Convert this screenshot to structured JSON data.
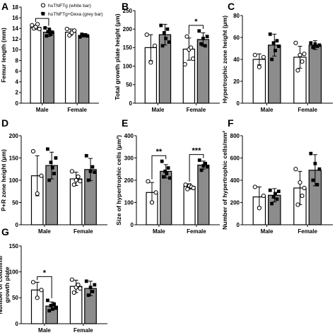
{
  "legend": [
    {
      "label": "huTNFTg (white bar)",
      "marker": "open-circle"
    },
    {
      "label": "huTNFTg+Dexa (grey bar)",
      "marker": "filled-square"
    }
  ],
  "colors": {
    "white_bar": "#ffffff",
    "grey_bar": "#8c8c8c",
    "outline": "#000000"
  },
  "chart_data": [
    {
      "type": "bar",
      "panel": "A",
      "title": "",
      "ylabel": "Femur length (mm)",
      "ylim": [
        0,
        18
      ],
      "yticks": [
        "0",
        "2",
        "4",
        "6",
        "8",
        "10",
        "12",
        "14",
        "16",
        "18"
      ],
      "categories": [
        "Male",
        "Female"
      ],
      "series": [
        {
          "name": "huTNFTg (white bar)",
          "values": [
            14.2,
            13.3
          ],
          "errors": [
            0.4,
            0.6
          ],
          "points": [
            [
              14.6,
              14.0,
              14.3,
              14.8,
              13.9
            ],
            [
              13.9,
              12.7,
              13.2,
              13.6
            ]
          ]
        },
        {
          "name": "huTNFTg+Dexa (grey bar)",
          "values": [
            13.3,
            12.7
          ],
          "errors": [
            0.8,
            0.3
          ],
          "points": [
            [
              14.1,
              12.6,
              13.4,
              13.7,
              12.9,
              13.3
            ],
            [
              12.4,
              12.9,
              12.7,
              12.8,
              12.6
            ]
          ]
        }
      ],
      "significance": [
        {
          "category": 0,
          "label": "*"
        }
      ]
    },
    {
      "type": "bar",
      "panel": "B",
      "title": "",
      "ylabel": "Total growth plate height (µm)",
      "ylim": [
        0,
        250
      ],
      "yticks": [
        "0",
        "50",
        "100",
        "150",
        "200",
        "250"
      ],
      "categories": [
        "Male",
        "Female"
      ],
      "series": [
        {
          "name": "huTNFTg (white bar)",
          "values": [
            150,
            146
          ],
          "errors": [
            35,
            30
          ],
          "points": [
            [
              185,
              110,
              155
            ],
            [
              105,
              180,
              145,
              150,
              120
            ]
          ]
        },
        {
          "name": "huTNFTg+Dexa (grey bar)",
          "values": [
            185,
            172
          ],
          "errors": [
            28,
            18
          ],
          "points": [
            [
              210,
              155,
              190,
              175,
              200,
              165
            ],
            [
              195,
              160,
              175,
              155,
              180
            ]
          ]
        }
      ],
      "significance": [
        {
          "category": 1,
          "label": "*"
        }
      ]
    },
    {
      "type": "bar",
      "panel": "C",
      "title": "",
      "ylabel": "Hypertrophic zone height (µm)",
      "ylim": [
        0,
        80
      ],
      "yticks": [
        "0",
        "20",
        "40",
        "60",
        "80"
      ],
      "categories": [
        "Male",
        "Female"
      ],
      "series": [
        {
          "name": "huTNFTg (white bar)",
          "values": [
            40,
            42
          ],
          "errors": [
            5,
            10
          ],
          "points": [
            [
              44,
              33,
              42
            ],
            [
              55,
              30,
              44,
              38,
              45
            ]
          ]
        },
        {
          "name": "huTNFTg+Dexa (grey bar)",
          "values": [
            53,
            53
          ],
          "errors": [
            10,
            4
          ],
          "points": [
            [
              63,
              40,
              55,
              48,
              57,
              52
            ],
            [
              55,
              51,
              54,
              52,
              53
            ]
          ]
        }
      ],
      "significance": []
    },
    {
      "type": "bar",
      "panel": "D",
      "title": "",
      "ylabel": "P+R zone height (µm)",
      "ylim": [
        0,
        200
      ],
      "yticks": [
        "0",
        "50",
        "100",
        "150",
        "200"
      ],
      "categories": [
        "Male",
        "Female"
      ],
      "series": [
        {
          "name": "huTNFTg (white bar)",
          "values": [
            110,
            103
          ],
          "errors": [
            45,
            15
          ],
          "points": [
            [
              165,
              70,
              110
            ],
            [
              120,
              90,
              100,
              108,
              98
            ]
          ]
        },
        {
          "name": "huTNFTg+Dexa (grey bar)",
          "values": [
            133,
            124
          ],
          "errors": [
            30,
            25
          ],
          "points": [
            [
              170,
              100,
              140,
              128,
              115,
              150
            ],
            [
              155,
              100,
              120,
              130,
              118
            ]
          ]
        }
      ],
      "significance": []
    },
    {
      "type": "bar",
      "panel": "E",
      "title": "",
      "ylabel": "Size of hypertrophic cells (µm²)",
      "ylim": [
        0,
        400
      ],
      "yticks": [
        "0",
        "100",
        "200",
        "300",
        "400"
      ],
      "categories": [
        "Male",
        "Female"
      ],
      "series": [
        {
          "name": "huTNFTg (white bar)",
          "values": [
            145,
            172
          ],
          "errors": [
            45,
            12
          ],
          "points": [
            [
              195,
              100,
              145
            ],
            [
              180,
              160,
              175,
              170,
              165
            ]
          ]
        },
        {
          "name": "huTNFTg+Dexa (grey bar)",
          "values": [
            240,
            268
          ],
          "errors": [
            30,
            18
          ],
          "points": [
            [
              285,
              215,
              240,
              230,
              255,
              210
            ],
            [
              290,
              245,
              265,
              275,
              260
            ]
          ]
        }
      ],
      "significance": [
        {
          "category": 0,
          "label": "**"
        },
        {
          "category": 1,
          "label": "***"
        }
      ]
    },
    {
      "type": "bar",
      "panel": "F",
      "title": "",
      "ylabel": "Number of hypertrophic cells/mm²",
      "ylim": [
        0,
        800
      ],
      "yticks": [
        "0",
        "200",
        "400",
        "600",
        "800"
      ],
      "categories": [
        "Male",
        "Female"
      ],
      "series": [
        {
          "name": "huTNFTg (white bar)",
          "values": [
            250,
            330
          ],
          "errors": [
            90,
            150
          ],
          "points": [
            [
              340,
              150,
              260
            ],
            [
              500,
              180,
              380,
              260,
              330
            ]
          ]
        },
        {
          "name": "huTNFTg+Dexa (grey bar)",
          "values": [
            265,
            490
          ],
          "errors": [
            60,
            140
          ],
          "points": [
            [
              310,
              190,
              250,
              280,
              230,
              300
            ],
            [
              640,
              400,
              550,
              360,
              500
            ]
          ]
        }
      ],
      "significance": []
    },
    {
      "type": "bar",
      "panel": "G",
      "title": "",
      "ylabel": "Number of columns/ growth plate",
      "ylim": [
        0,
        150
      ],
      "yticks": [
        "0",
        "50",
        "100",
        "150"
      ],
      "categories": [
        "Male",
        "Female"
      ],
      "series": [
        {
          "name": "huTNFTg (white bar)",
          "values": [
            65,
            72
          ],
          "errors": [
            15,
            12
          ],
          "points": [
            [
              80,
              50,
              65
            ],
            [
              85,
              60,
              70,
              75,
              68
            ]
          ]
        },
        {
          "name": "huTNFTg+Dexa (grey bar)",
          "values": [
            34,
            68
          ],
          "errors": [
            8,
            14
          ],
          "points": [
            [
              45,
              25,
              35,
              28,
              38,
              30
            ],
            [
              82,
              55,
              70,
              62,
              75
            ]
          ]
        }
      ],
      "significance": [
        {
          "category": 0,
          "label": "*"
        }
      ]
    }
  ]
}
